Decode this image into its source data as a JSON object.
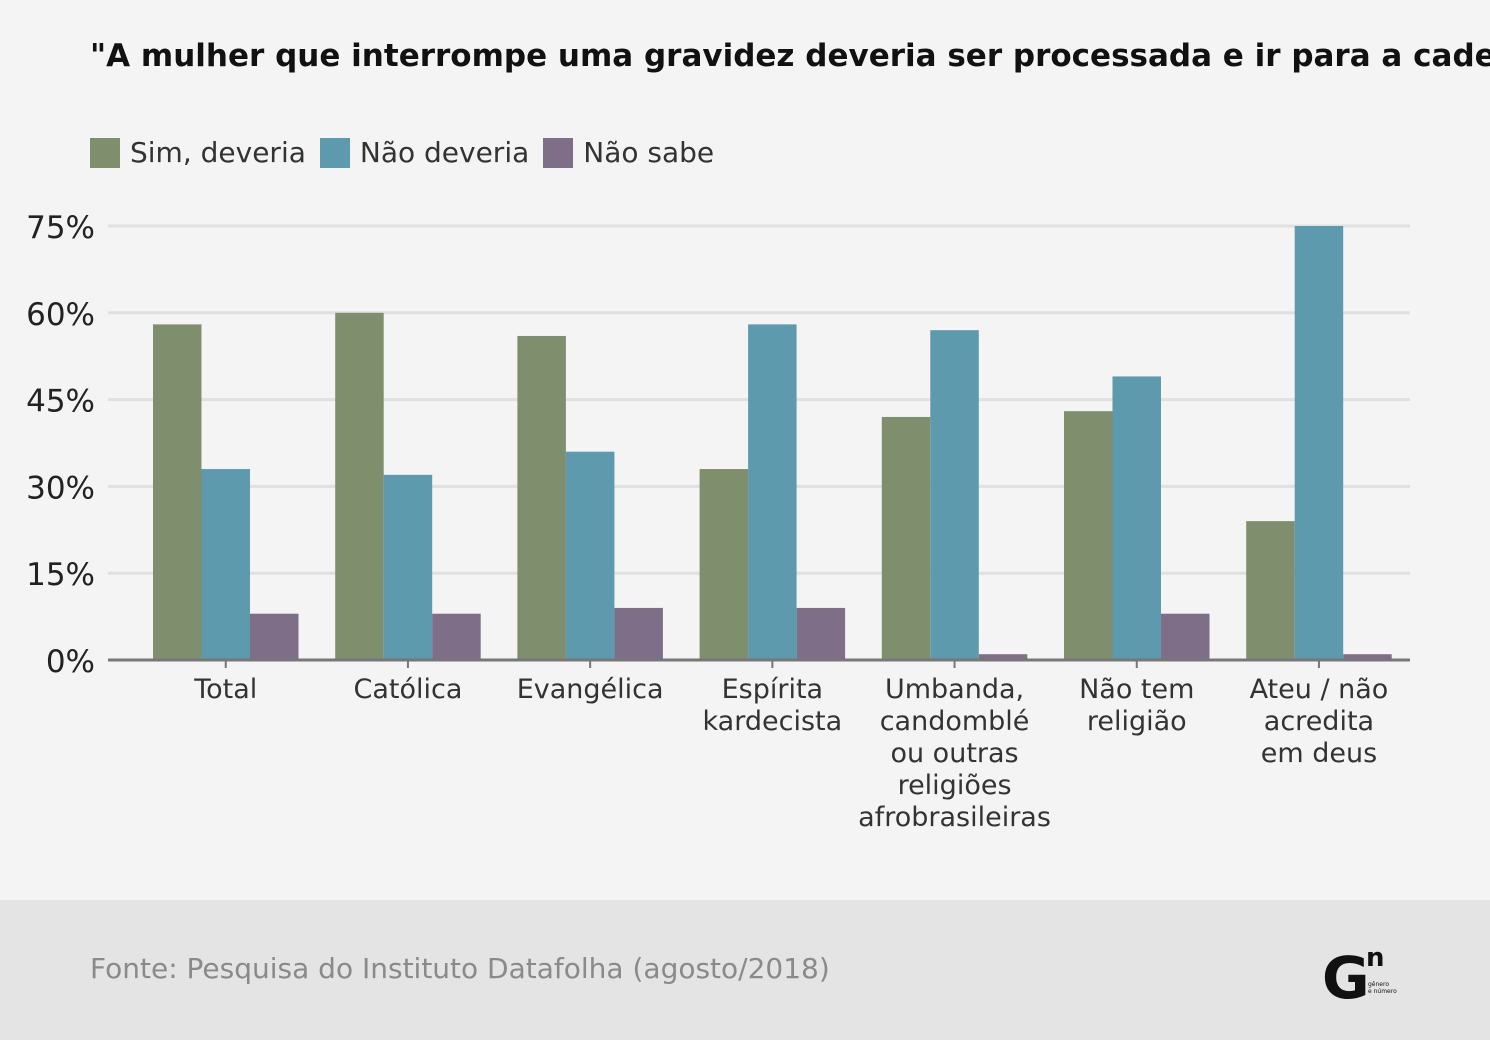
{
  "chart_data": {
    "type": "bar",
    "title": "\"A mulher que interrompe uma gravidez deveria ser processada e ir para a cadeia?\"",
    "categories": [
      [
        "Total"
      ],
      [
        "Católica"
      ],
      [
        "Evangélica"
      ],
      [
        "Espírita",
        "kardecista"
      ],
      [
        "Umbanda,",
        "candomblé",
        "ou outras",
        "religiões",
        "afrobrasileiras"
      ],
      [
        "Não tem",
        "religião"
      ],
      [
        "Ateu / não",
        "acredita",
        "em deus"
      ]
    ],
    "series": [
      {
        "name": "Sim, deveria",
        "color": "#7f8f6e",
        "values": [
          58,
          60,
          56,
          33,
          42,
          43,
          24
        ]
      },
      {
        "name": "Não deveria",
        "color": "#5e9aae",
        "values": [
          33,
          32,
          36,
          58,
          57,
          49,
          75
        ]
      },
      {
        "name": "Não sabe",
        "color": "#7e6e88",
        "values": [
          8,
          8,
          9,
          9,
          1,
          8,
          1
        ]
      }
    ],
    "yticks": [
      "0%",
      "15%",
      "30%",
      "45%",
      "60%",
      "75%"
    ],
    "ytick_values": [
      0,
      15,
      30,
      45,
      60,
      75
    ],
    "ylim": [
      0,
      75
    ],
    "grid": true,
    "legend_position": "top-left"
  },
  "footer": {
    "source": "Fonte: Pesquisa do Instituto Datafolha (agosto/2018)",
    "logo_mark": "G",
    "logo_superscript": "n",
    "logo_caption_1": "gênero",
    "logo_caption_2": "e número"
  }
}
